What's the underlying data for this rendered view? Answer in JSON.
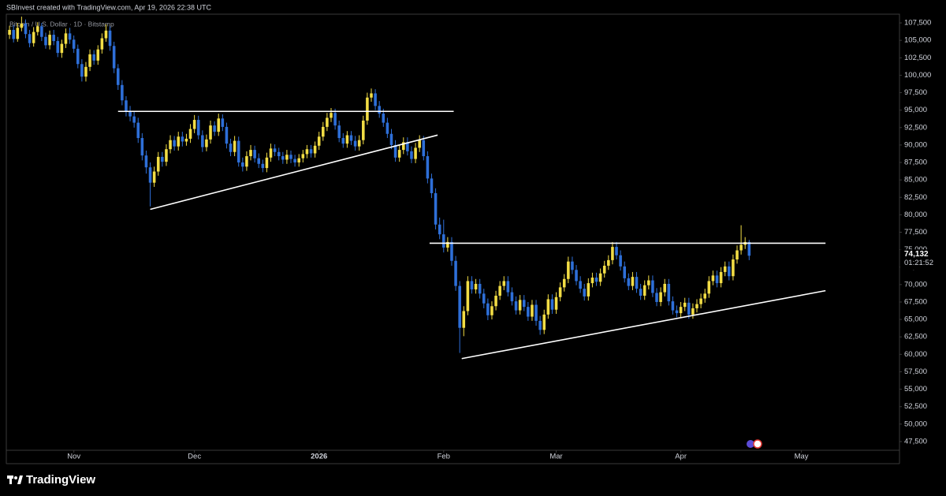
{
  "header": {
    "credit": "SBInvest created with TradingView.com, Apr 19, 2026 22:38 UTC",
    "brand": "TradingView"
  },
  "chart_data": {
    "type": "candlestick",
    "title": "Bitcoin / U.S. Dollar · 1D · Bitstamp",
    "up_color": "#f2dd45",
    "down_color": "#2e6fd8",
    "line_color": "#ffffff",
    "grid": false,
    "xlim": [
      -0.8,
      221.4
    ],
    "xticks": [
      {
        "value": 16,
        "label": "Nov"
      },
      {
        "value": 46,
        "label": "Dec"
      },
      {
        "value": 77,
        "label": "2026"
      },
      {
        "value": 108,
        "label": "Feb"
      },
      {
        "value": 136,
        "label": "Mar"
      },
      {
        "value": 167,
        "label": "Apr"
      },
      {
        "value": 197,
        "label": "May"
      }
    ],
    "ylim": [
      46250,
      109880
    ],
    "yticks": [
      {
        "value": 47500,
        "label": "47,500"
      },
      {
        "value": 50000,
        "label": "50,000"
      },
      {
        "value": 52500,
        "label": "52,500"
      },
      {
        "value": 55000,
        "label": "55,000"
      },
      {
        "value": 57500,
        "label": "57,500"
      },
      {
        "value": 60000,
        "label": "60,000"
      },
      {
        "value": 62500,
        "label": "62,500"
      },
      {
        "value": 65000,
        "label": "65,000"
      },
      {
        "value": 67500,
        "label": "67,500"
      },
      {
        "value": 70000,
        "label": "70,000"
      },
      {
        "value": 72500,
        "label": "72,500"
      },
      {
        "value": 75000,
        "label": "75,000"
      },
      {
        "value": 77500,
        "label": "77,500"
      },
      {
        "value": 80000,
        "label": "80,000"
      },
      {
        "value": 82500,
        "label": "82,500"
      },
      {
        "value": 85000,
        "label": "85,000"
      },
      {
        "value": 87500,
        "label": "87,500"
      },
      {
        "value": 90000,
        "label": "90,000"
      },
      {
        "value": 92500,
        "label": "92,500"
      },
      {
        "value": 95000,
        "label": "95,000"
      },
      {
        "value": 97500,
        "label": "97,500"
      },
      {
        "value": 100000,
        "label": "100,000"
      },
      {
        "value": 102500,
        "label": "102,500"
      },
      {
        "value": 105000,
        "label": "105,000"
      },
      {
        "value": 107500,
        "label": "107,500"
      }
    ],
    "last_price": {
      "value": 74132,
      "label": "74,132"
    },
    "countdown": "01:21:52",
    "trendlines": [
      {
        "x": [
          27,
          110.5
        ],
        "y": [
          94820,
          94820
        ]
      },
      {
        "x": [
          35,
          106.5
        ],
        "y": [
          80780,
          91420
        ]
      },
      {
        "x": [
          104.5,
          203
        ],
        "y": [
          75920,
          75920
        ]
      },
      {
        "x": [
          112.5,
          203
        ],
        "y": [
          59390,
          69120
        ]
      }
    ],
    "open": [
      105800,
      106500,
      105200,
      106800,
      107400,
      105900,
      104600,
      106200,
      107000,
      105500,
      104300,
      105800,
      104900,
      103200,
      104500,
      106000,
      105100,
      103800,
      101600,
      99800,
      101200,
      103000,
      102100,
      103700,
      105300,
      106400,
      104200,
      101000,
      98600,
      96400,
      94800,
      94100,
      93200,
      91000,
      88500,
      86800,
      84600,
      86200,
      88300,
      87600,
      89400,
      90700,
      89800,
      91200,
      90500,
      90900,
      92300,
      93600,
      91400,
      89700,
      90800,
      92800,
      91900,
      93800,
      92600,
      90200,
      89000,
      90600,
      87500,
      86900,
      88400,
      89300,
      88100,
      87300,
      86700,
      88200,
      89500,
      89000,
      88400,
      87900,
      88600,
      88000,
      87500,
      88100,
      88700,
      89400,
      88800,
      89900,
      91200,
      92600,
      93900,
      94600,
      92800,
      91000,
      90200,
      91400,
      90600,
      89800,
      90700,
      93500,
      96800,
      97400,
      95600,
      94500,
      93200,
      91600,
      90000,
      88200,
      89300,
      90400,
      89100,
      88000,
      89600,
      90700,
      88400,
      85200,
      83100,
      78600,
      77200,
      75300,
      76100,
      73400,
      69800,
      63800,
      66200,
      70500,
      69300,
      70100,
      68700,
      67300,
      65600,
      66900,
      68400,
      69800,
      70500,
      68900,
      67600,
      66300,
      67800,
      66800,
      65400,
      67100,
      64800,
      63500,
      65700,
      67900,
      66400,
      68200,
      69600,
      70800,
      73300,
      72100,
      70500,
      69400,
      68300,
      70200,
      71000,
      70400,
      71600,
      72700,
      73500,
      75400,
      74200,
      72600,
      70900,
      69800,
      71100,
      69400,
      68400,
      69900,
      70600,
      68800,
      67500,
      68900,
      70100,
      67600,
      66300,
      65900,
      66800,
      67400,
      65700,
      66600,
      67200,
      68000,
      68700,
      70500,
      71300,
      70200,
      71800,
      72600,
      71200,
      73600,
      74900,
      75700,
      76100
    ],
    "high": [
      107100,
      107200,
      107500,
      108400,
      108000,
      106500,
      106900,
      107600,
      107500,
      106100,
      106400,
      106500,
      105500,
      105100,
      106700,
      106800,
      105700,
      104400,
      102300,
      101900,
      103700,
      103600,
      104300,
      106000,
      107300,
      107000,
      104800,
      101600,
      99300,
      97000,
      95600,
      94800,
      93900,
      91700,
      89200,
      87500,
      86900,
      89000,
      89000,
      90100,
      91400,
      91300,
      91900,
      91900,
      91600,
      93000,
      94300,
      94200,
      92100,
      91500,
      93500,
      93400,
      94500,
      94400,
      93200,
      90900,
      91300,
      91200,
      88200,
      89100,
      90000,
      89900,
      88800,
      87900,
      88900,
      90200,
      90100,
      89600,
      89000,
      89300,
      89200,
      88600,
      88700,
      89300,
      90000,
      90000,
      90500,
      91900,
      93300,
      94600,
      95300,
      95200,
      93500,
      91700,
      92000,
      92000,
      91300,
      91400,
      94200,
      97500,
      98100,
      98000,
      96300,
      95200,
      93900,
      92300,
      90700,
      90000,
      91100,
      91100,
      89800,
      90300,
      91400,
      91300,
      89100,
      85900,
      83800,
      79600,
      79300,
      76800,
      76800,
      74100,
      70500,
      66900,
      71200,
      71200,
      70800,
      70800,
      69400,
      68000,
      67600,
      69100,
      70500,
      71200,
      71200,
      69600,
      68300,
      68500,
      68500,
      67500,
      67800,
      67800,
      65500,
      66400,
      68600,
      68600,
      68900,
      70300,
      71500,
      74000,
      74000,
      72800,
      71200,
      70100,
      70900,
      71700,
      71700,
      72300,
      73400,
      74200,
      76100,
      76100,
      74900,
      73300,
      71600,
      71800,
      71800,
      70100,
      70600,
      71300,
      71300,
      69500,
      69600,
      70800,
      70800,
      68300,
      67000,
      67500,
      68100,
      68100,
      67300,
      67900,
      68700,
      69400,
      71200,
      72000,
      72000,
      72500,
      73300,
      73300,
      74300,
      75600,
      78500,
      76800,
      76400
    ],
    "low": [
      105200,
      104700,
      104800,
      106300,
      105300,
      104000,
      104100,
      105700,
      104900,
      103800,
      103700,
      104300,
      102600,
      102500,
      103900,
      104500,
      103200,
      101000,
      99100,
      99100,
      100600,
      101500,
      101500,
      103100,
      104800,
      103500,
      100300,
      97900,
      95700,
      94100,
      93400,
      92500,
      90300,
      87800,
      85900,
      81200,
      84000,
      85600,
      86900,
      87000,
      88800,
      89200,
      89200,
      89800,
      89900,
      90300,
      91700,
      90800,
      89000,
      89100,
      90200,
      91300,
      91300,
      92000,
      89500,
      88400,
      88400,
      86900,
      86200,
      86300,
      87800,
      87500,
      86700,
      86100,
      86100,
      87600,
      88400,
      87800,
      87300,
      87300,
      87400,
      86900,
      86900,
      87500,
      88100,
      88200,
      88200,
      89300,
      90600,
      92000,
      93300,
      92200,
      90400,
      89600,
      89600,
      90000,
      89200,
      89200,
      90100,
      92900,
      96200,
      95000,
      93900,
      92600,
      91000,
      89400,
      87600,
      87600,
      88700,
      88500,
      87400,
      87400,
      89000,
      87800,
      84500,
      82400,
      77900,
      76500,
      74600,
      74700,
      72700,
      69100,
      60200,
      62600,
      65600,
      68700,
      68700,
      68000,
      66600,
      64900,
      65000,
      66300,
      67800,
      69200,
      68300,
      67000,
      65700,
      65700,
      66200,
      64800,
      64800,
      64100,
      62800,
      62900,
      65100,
      65800,
      65800,
      67600,
      69000,
      70200,
      71500,
      69900,
      68800,
      67700,
      67700,
      69600,
      69800,
      69800,
      71000,
      72100,
      72900,
      73600,
      72000,
      70300,
      69200,
      69200,
      68800,
      67800,
      67800,
      69300,
      68200,
      66900,
      66900,
      68300,
      67000,
      65700,
      65300,
      65300,
      66200,
      65100,
      65100,
      66000,
      66600,
      67400,
      68100,
      69900,
      69600,
      69600,
      71200,
      70600,
      70600,
      73000,
      74300,
      75100,
      73500
    ],
    "close": [
      106500,
      105200,
      106800,
      107400,
      105900,
      104600,
      106200,
      107000,
      105500,
      104300,
      105800,
      104900,
      103200,
      104500,
      106000,
      105100,
      103800,
      101600,
      99800,
      101200,
      103000,
      102100,
      103700,
      105300,
      106400,
      104200,
      101000,
      98600,
      96400,
      94800,
      94100,
      93200,
      91000,
      88500,
      86800,
      84600,
      86200,
      88300,
      87600,
      89400,
      90700,
      89800,
      91200,
      90500,
      90900,
      92300,
      93600,
      91400,
      89700,
      90800,
      92800,
      91900,
      93800,
      92600,
      90200,
      89000,
      90600,
      87500,
      86900,
      88400,
      89300,
      88100,
      87300,
      86700,
      88200,
      89500,
      89000,
      88400,
      87900,
      88600,
      88000,
      87500,
      88100,
      88700,
      89400,
      88800,
      89900,
      91200,
      92600,
      93900,
      94600,
      92800,
      91000,
      90200,
      91400,
      90600,
      89800,
      90700,
      93500,
      96800,
      97400,
      95600,
      94500,
      93200,
      91600,
      90000,
      88200,
      89300,
      90400,
      89100,
      88000,
      89600,
      90700,
      88400,
      85200,
      83100,
      78600,
      77200,
      75300,
      76100,
      73400,
      69800,
      63800,
      66200,
      70500,
      69300,
      70100,
      68700,
      67300,
      65600,
      66900,
      68400,
      69800,
      70500,
      68900,
      67600,
      66300,
      67800,
      66800,
      65400,
      67100,
      64800,
      63500,
      65700,
      67900,
      66400,
      68200,
      69600,
      70800,
      73300,
      72100,
      70500,
      69400,
      68300,
      70200,
      71000,
      70400,
      71600,
      72700,
      73500,
      75400,
      74200,
      72600,
      70900,
      69800,
      71100,
      69400,
      68400,
      69900,
      70600,
      68800,
      67500,
      68900,
      70100,
      67600,
      66300,
      65900,
      66800,
      67400,
      65700,
      66600,
      67200,
      68000,
      68700,
      70500,
      71300,
      70200,
      71800,
      72600,
      71200,
      73600,
      74900,
      75700,
      76100,
      74132
    ]
  }
}
